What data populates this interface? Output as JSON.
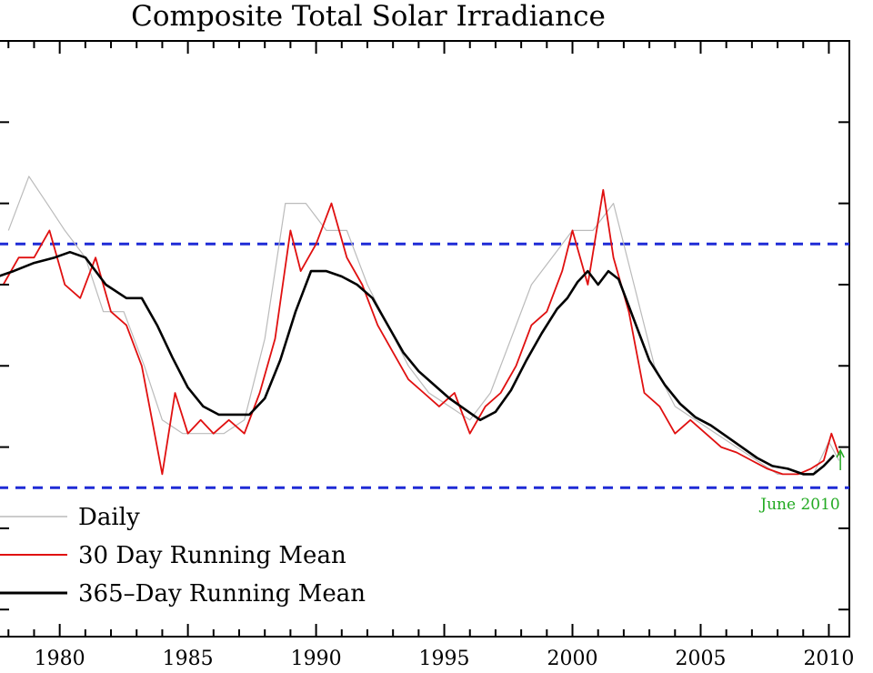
{
  "chart_data": {
    "type": "line",
    "title": "Composite Total Solar Irradiance",
    "xlabel": "",
    "ylabel": "",
    "xlim": [
      1977.6,
      2010.8
    ],
    "ylim": [
      1364.7,
      1366.9
    ],
    "x_ticks": [
      1980,
      1985,
      1990,
      1995,
      2000,
      2005,
      2010
    ],
    "x_tick_labels": [
      "1980",
      "1985",
      "1990",
      "1995",
      "2000",
      "2005",
      "2010"
    ],
    "y_tick_values": [
      1364.8,
      1365.1,
      1365.4,
      1365.7,
      1366.0,
      1366.3,
      1366.6
    ],
    "grid": false,
    "legend_position": "lower-left",
    "reference_lines": [
      {
        "y": 1366.15,
        "style": "dashed",
        "color": "#1f2bd6"
      },
      {
        "y": 1365.25,
        "style": "dashed",
        "color": "#1f2bd6"
      }
    ],
    "annotation": {
      "text": "June 2010",
      "x": 2010.45,
      "y": 1365.35,
      "color": "#22aa22"
    },
    "series": [
      {
        "name": "Daily",
        "color": "#bbbbbb",
        "x": [
          1978.0,
          1978.8,
          1979.5,
          1980.2,
          1981.0,
          1981.7,
          1982.5,
          1983.3,
          1984.0,
          1984.8,
          1985.6,
          1986.4,
          1987.2,
          1988.0,
          1988.8,
          1989.6,
          1990.4,
          1991.2,
          1992.0,
          1992.8,
          1993.6,
          1994.4,
          1995.2,
          1996.0,
          1996.8,
          1997.6,
          1998.4,
          1999.2,
          2000.0,
          2000.8,
          2001.6,
          2002.4,
          2003.2,
          2004.0,
          2004.8,
          2005.6,
          2006.4,
          2007.2,
          2008.0,
          2008.8,
          2009.4,
          2010.0,
          2010.4
        ],
        "y": [
          1366.2,
          1366.4,
          1366.3,
          1366.2,
          1366.1,
          1365.9,
          1365.9,
          1365.7,
          1365.5,
          1365.45,
          1365.45,
          1365.45,
          1365.5,
          1365.8,
          1366.3,
          1366.3,
          1366.2,
          1366.2,
          1366.0,
          1365.85,
          1365.7,
          1365.6,
          1365.55,
          1365.5,
          1365.6,
          1365.8,
          1366.0,
          1366.1,
          1366.2,
          1366.2,
          1366.3,
          1366.0,
          1365.7,
          1365.55,
          1365.5,
          1365.45,
          1365.4,
          1365.35,
          1365.3,
          1365.3,
          1365.3,
          1365.42,
          1365.35
        ]
      },
      {
        "name": "30  Day Running Mean",
        "color": "#e01010",
        "x": [
          1977.8,
          1978.4,
          1979.0,
          1979.6,
          1980.2,
          1980.8,
          1981.4,
          1982.0,
          1982.6,
          1983.2,
          1983.6,
          1984.0,
          1984.5,
          1985.0,
          1985.5,
          1986.0,
          1986.6,
          1987.2,
          1987.8,
          1988.4,
          1989.0,
          1989.4,
          1990.0,
          1990.6,
          1991.2,
          1991.8,
          1992.4,
          1993.0,
          1993.6,
          1994.2,
          1994.8,
          1995.4,
          1996.0,
          1996.6,
          1997.2,
          1997.8,
          1998.4,
          1999.0,
          1999.6,
          2000.0,
          2000.6,
          2001.2,
          2001.6,
          2002.2,
          2002.8,
          2003.4,
          2004.0,
          2004.6,
          2005.2,
          2005.8,
          2006.4,
          2007.0,
          2007.6,
          2008.2,
          2008.8,
          2009.3,
          2009.8,
          2010.1,
          2010.4
        ],
        "y": [
          1366.0,
          1366.1,
          1366.1,
          1366.2,
          1366.0,
          1365.95,
          1366.1,
          1365.9,
          1365.85,
          1365.7,
          1365.5,
          1365.3,
          1365.6,
          1365.45,
          1365.5,
          1365.45,
          1365.5,
          1365.45,
          1365.6,
          1365.8,
          1366.2,
          1366.05,
          1366.15,
          1366.3,
          1366.1,
          1366.0,
          1365.85,
          1365.75,
          1365.65,
          1365.6,
          1365.55,
          1365.6,
          1365.45,
          1365.55,
          1365.6,
          1365.7,
          1365.85,
          1365.9,
          1366.05,
          1366.2,
          1366.0,
          1366.35,
          1366.1,
          1365.9,
          1365.6,
          1365.55,
          1365.45,
          1365.5,
          1365.45,
          1365.4,
          1365.38,
          1365.35,
          1365.32,
          1365.3,
          1365.3,
          1365.32,
          1365.35,
          1365.45,
          1365.37
        ]
      },
      {
        "name": "365–Day Running Mean",
        "color": "#000000",
        "x": [
          1977.6,
          1978.2,
          1979.0,
          1979.8,
          1980.4,
          1981.0,
          1981.8,
          1982.6,
          1983.2,
          1983.8,
          1984.4,
          1985.0,
          1985.6,
          1986.2,
          1986.8,
          1987.4,
          1988.0,
          1988.6,
          1989.2,
          1989.8,
          1990.4,
          1991.0,
          1991.6,
          1992.2,
          1992.8,
          1993.4,
          1994.0,
          1994.6,
          1995.2,
          1995.8,
          1996.4,
          1997.0,
          1997.6,
          1998.2,
          1998.8,
          1999.4,
          1999.8,
          2000.2,
          2000.6,
          2001.0,
          2001.4,
          2001.8,
          2002.4,
          2003.0,
          2003.6,
          2004.2,
          2004.8,
          2005.4,
          2006.0,
          2006.6,
          2007.2,
          2007.8,
          2008.4,
          2009.0,
          2009.4,
          2009.8,
          2010.2
        ],
        "y": [
          1366.03,
          1366.05,
          1366.08,
          1366.1,
          1366.12,
          1366.1,
          1366.0,
          1365.95,
          1365.95,
          1365.85,
          1365.73,
          1365.62,
          1365.55,
          1365.52,
          1365.52,
          1365.52,
          1365.58,
          1365.72,
          1365.9,
          1366.05,
          1366.05,
          1366.03,
          1366.0,
          1365.95,
          1365.85,
          1365.75,
          1365.68,
          1365.63,
          1365.58,
          1365.54,
          1365.5,
          1365.53,
          1365.61,
          1365.72,
          1365.82,
          1365.91,
          1365.95,
          1366.01,
          1366.05,
          1366.0,
          1366.05,
          1366.02,
          1365.87,
          1365.72,
          1365.63,
          1365.56,
          1365.51,
          1365.48,
          1365.44,
          1365.4,
          1365.36,
          1365.33,
          1365.32,
          1365.3,
          1365.3,
          1365.33,
          1365.37
        ]
      }
    ]
  }
}
